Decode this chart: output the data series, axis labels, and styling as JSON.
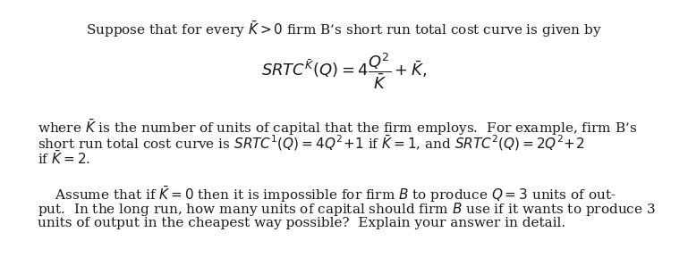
{
  "figsize": [
    7.69,
    3.07
  ],
  "dpi": 100,
  "bg_color": "#ffffff",
  "line1": "Suppose that for every $\\bar{K} > 0$ firm B’s short run total cost curve is given by",
  "formula": "$SRTC^{\\bar{K}}(Q) = 4\\dfrac{Q^2}{\\bar{K}} + \\bar{K},$",
  "line2": "where $\\bar{K}$ is the number of units of capital that the firm employs.  For example, firm B’s",
  "line3": "short run total cost curve is $SRTC^1(Q) = 4Q^2\\!+\\!1$ if $\\bar{K} = 1$, and $SRTC^2(Q) = 2Q^2\\!+\\!2$",
  "line4": "if $\\bar{K} = 2$.",
  "line5": "    Assume that if $\\bar{K} = 0$ then it is impossible for firm $B$ to produce $Q = 3$ units of out-",
  "line6": "put.  In the long run, how many units of capital should firm $B$ use if it wants to produce 3",
  "line7": "units of output in the cheapest way possible?  Explain your answer in detail.",
  "font_size_body": 11.0,
  "font_size_formula": 13.0,
  "text_color": "#1a1a1a"
}
